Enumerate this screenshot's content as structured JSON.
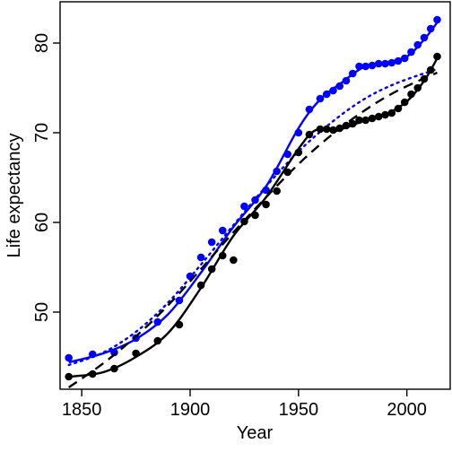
{
  "chart_data": {
    "type": "scatter",
    "xlabel": "Year",
    "ylabel": "Life expectancy",
    "xlim": [
      1840,
      2020
    ],
    "ylim": [
      41.4,
      84.6
    ],
    "x_ticks": [
      1850,
      1900,
      1950,
      2000
    ],
    "y_ticks": [
      50,
      60,
      70,
      80
    ],
    "grid": false,
    "legend": "none",
    "series": [
      {
        "color": "#0000ff",
        "points": [
          [
            1844,
            44.9
          ],
          [
            1855,
            45.3
          ],
          [
            1865,
            45.5
          ],
          [
            1875,
            47.1
          ],
          [
            1885,
            48.9
          ],
          [
            1895,
            51.3
          ],
          [
            1900,
            54.0
          ],
          [
            1905,
            56.1
          ],
          [
            1910,
            57.8
          ],
          [
            1915,
            59.1
          ],
          [
            1925,
            61.8
          ],
          [
            1930,
            62.5
          ],
          [
            1935,
            63.6
          ],
          [
            1940,
            65.7
          ],
          [
            1945,
            67.6
          ],
          [
            1950,
            70.0
          ],
          [
            1955,
            72.6
          ],
          [
            1960,
            73.8
          ],
          [
            1963,
            74.3
          ],
          [
            1966,
            74.7
          ],
          [
            1969,
            75.2
          ],
          [
            1972,
            75.8
          ],
          [
            1975,
            76.6
          ],
          [
            1978,
            77.4
          ],
          [
            1981,
            77.4
          ],
          [
            1984,
            77.5
          ],
          [
            1987,
            77.7
          ],
          [
            1990,
            77.7
          ],
          [
            1993,
            77.8
          ],
          [
            1996,
            78.0
          ],
          [
            1999,
            78.3
          ],
          [
            2002,
            79.0
          ],
          [
            2005,
            79.8
          ],
          [
            2008,
            80.6
          ],
          [
            2011,
            81.6
          ],
          [
            2014,
            82.6
          ]
        ],
        "smooth": [
          [
            1844,
            44.4
          ],
          [
            1860,
            45.4
          ],
          [
            1875,
            47.0
          ],
          [
            1890,
            49.8
          ],
          [
            1905,
            54.4
          ],
          [
            1920,
            59.5
          ],
          [
            1935,
            64.0
          ],
          [
            1950,
            70.5
          ],
          [
            1960,
            73.7
          ],
          [
            1970,
            75.6
          ],
          [
            1980,
            77.3
          ],
          [
            1990,
            77.8
          ],
          [
            2000,
            78.5
          ],
          [
            2008,
            80.4
          ],
          [
            2014,
            82.3
          ]
        ],
        "trend": [
          [
            1844,
            44.1
          ],
          [
            1860,
            45.5
          ],
          [
            1875,
            47.8
          ],
          [
            1890,
            51.1
          ],
          [
            1905,
            55.3
          ],
          [
            1920,
            59.7
          ],
          [
            1935,
            64.0
          ],
          [
            1950,
            67.9
          ],
          [
            1965,
            71.1
          ],
          [
            1980,
            73.7
          ],
          [
            1995,
            75.5
          ],
          [
            2014,
            77.1
          ]
        ]
      },
      {
        "color": "#000000",
        "points": [
          [
            1844,
            42.8
          ],
          [
            1855,
            43.1
          ],
          [
            1865,
            43.7
          ],
          [
            1875,
            45.4
          ],
          [
            1885,
            46.8
          ],
          [
            1895,
            48.6
          ],
          [
            1905,
            53.0
          ],
          [
            1910,
            54.8
          ],
          [
            1915,
            56.3
          ],
          [
            1920,
            55.8
          ],
          [
            1925,
            60.1
          ],
          [
            1930,
            60.8
          ],
          [
            1935,
            62.0
          ],
          [
            1940,
            63.5
          ],
          [
            1945,
            65.6
          ],
          [
            1950,
            67.8
          ],
          [
            1955,
            69.8
          ],
          [
            1960,
            70.4
          ],
          [
            1963,
            70.4
          ],
          [
            1966,
            70.3
          ],
          [
            1969,
            70.5
          ],
          [
            1972,
            70.8
          ],
          [
            1975,
            71.0
          ],
          [
            1978,
            71.4
          ],
          [
            1981,
            71.4
          ],
          [
            1984,
            71.6
          ],
          [
            1987,
            71.8
          ],
          [
            1990,
            72.0
          ],
          [
            1993,
            72.2
          ],
          [
            1996,
            72.7
          ],
          [
            1999,
            73.4
          ],
          [
            2002,
            74.3
          ],
          [
            2005,
            75.0
          ],
          [
            2008,
            76.0
          ],
          [
            2011,
            77.0
          ],
          [
            2014,
            78.5
          ]
        ],
        "smooth": [
          [
            1844,
            42.8
          ],
          [
            1860,
            43.3
          ],
          [
            1875,
            45.0
          ],
          [
            1890,
            47.7
          ],
          [
            1905,
            52.7
          ],
          [
            1920,
            58.5
          ],
          [
            1935,
            62.8
          ],
          [
            1950,
            68.2
          ],
          [
            1958,
            70.3
          ],
          [
            1968,
            70.3
          ],
          [
            1980,
            71.3
          ],
          [
            1990,
            72.0
          ],
          [
            2000,
            73.5
          ],
          [
            2008,
            75.8
          ],
          [
            2014,
            78.3
          ]
        ],
        "trend": [
          [
            1844,
            41.6
          ],
          [
            1860,
            44.3
          ],
          [
            1875,
            47.3
          ],
          [
            1890,
            50.8
          ],
          [
            1905,
            54.8
          ],
          [
            1920,
            58.9
          ],
          [
            1935,
            62.8
          ],
          [
            1950,
            66.5
          ],
          [
            1965,
            69.7
          ],
          [
            1980,
            72.4
          ],
          [
            1995,
            74.6
          ],
          [
            2014,
            76.7
          ]
        ]
      }
    ]
  }
}
